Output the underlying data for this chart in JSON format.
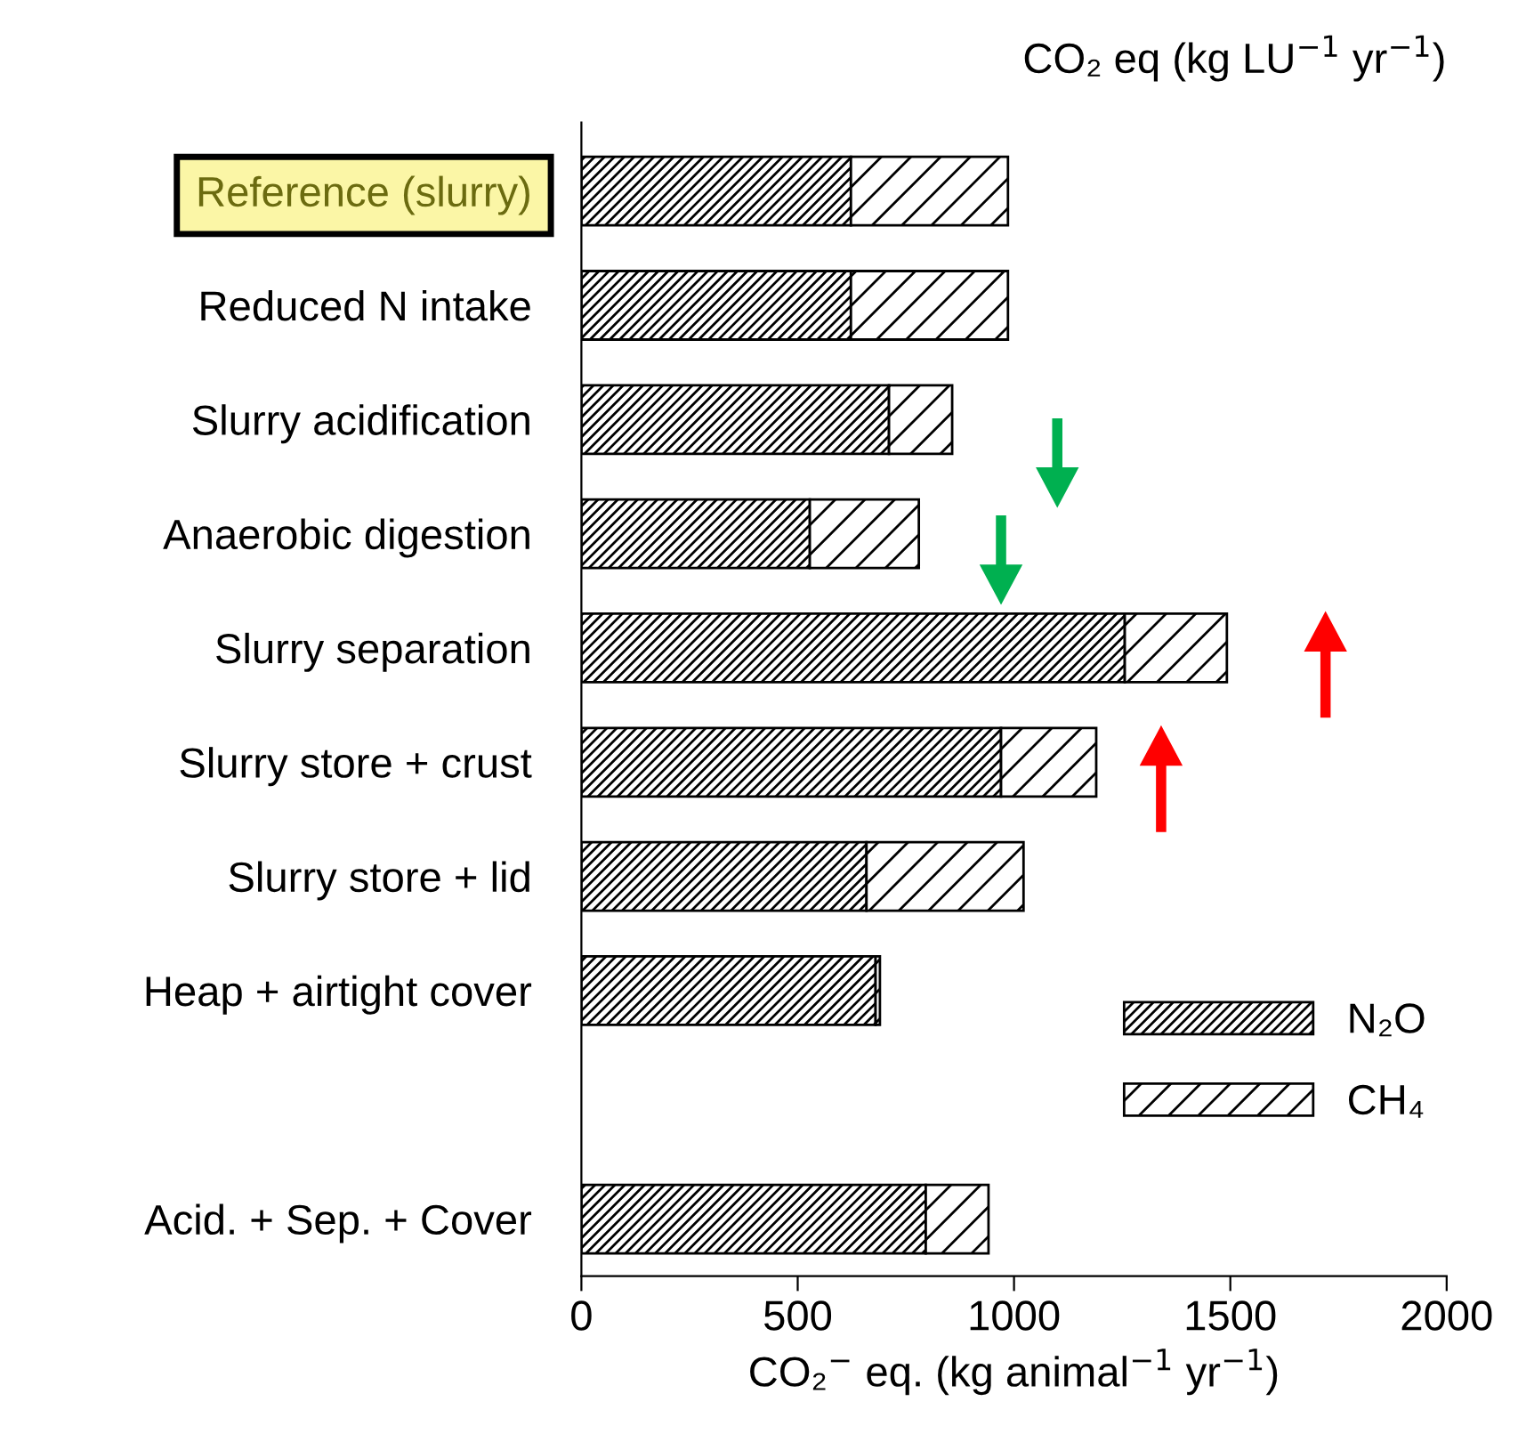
{
  "chart_data": {
    "type": "bar",
    "orientation": "horizontal",
    "stacked": true,
    "title": "CO₂ eq (kg LU$^{−1}$ yr$^{−1}$)",
    "xlabel": "CO₂$^{−}$ eq. (kg animal$^{−1}$ yr$^{−1}$)",
    "categories": [
      "Reference (slurry)",
      "Reduced N intake",
      "Slurry acidification",
      "Anaerobic digestion",
      "Slurry separation",
      "Slurry store + crust",
      "Slurry store + lid",
      "Heap + airtight cover",
      null,
      "Acid. + Sep. + Cover"
    ],
    "series": [
      {
        "name": "N₂O",
        "color": "#000000",
        "values": [
          623,
          623,
          711,
          528,
          1256,
          970,
          659,
          680,
          null,
          796
        ]
      },
      {
        "name": "CH₄",
        "color": "#000000",
        "values": [
          363,
          363,
          146,
          252,
          236,
          220,
          363,
          10,
          null,
          145
        ]
      }
    ],
    "xlim": [
      0,
      2000
    ],
    "xticks": [
      0,
      500,
      1000,
      1500,
      2000
    ],
    "grid": false,
    "legend": "bottom right"
  }
}
